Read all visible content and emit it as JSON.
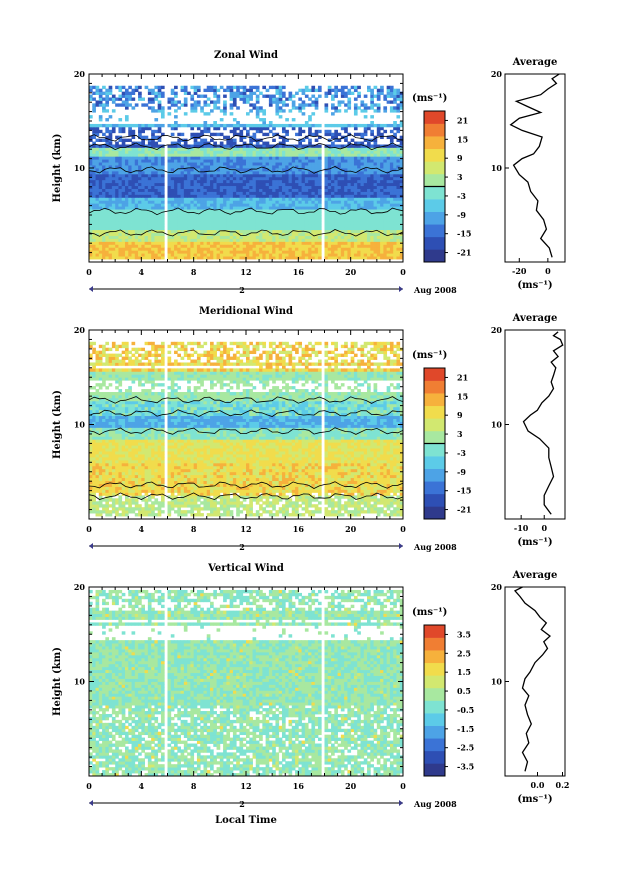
{
  "figure": {
    "x_axis_label": "Local Time",
    "date_label": "Aug 2008",
    "day_label": "2",
    "colorbar_unit": "(ms⁻¹)",
    "avg_unit": "(ms⁻¹)"
  },
  "chart_data": [
    {
      "type": "heatmap",
      "title": "Zonal Wind",
      "ylabel": "Height (km)",
      "x_ticks": [
        "0",
        "4",
        "8",
        "12",
        "16",
        "20",
        "0"
      ],
      "xlim": [
        0,
        24
      ],
      "y_ticks": [
        "10",
        "20"
      ],
      "ylim": [
        0,
        20
      ],
      "colorbar": {
        "ticks": [
          "21",
          "15",
          "9",
          "3",
          "-3",
          "-9",
          "-15",
          "-21"
        ],
        "range": [
          -24,
          24
        ],
        "zero_line": true
      },
      "profile": {
        "title": "Average",
        "x_ticks": [
          "-20",
          "0"
        ],
        "xlim": [
          -30,
          12
        ],
        "y_ticks": [
          "10",
          "20"
        ],
        "points": [
          [
            3,
            0.5
          ],
          [
            1,
            1.5
          ],
          [
            -5,
            2.5
          ],
          [
            -1,
            3.5
          ],
          [
            -3,
            4.5
          ],
          [
            -8,
            5.5
          ],
          [
            -7,
            6.5
          ],
          [
            -12,
            7.5
          ],
          [
            -14,
            8.5
          ],
          [
            -20,
            9.3
          ],
          [
            -24,
            10.3
          ],
          [
            -18,
            11
          ],
          [
            -10,
            11.5
          ],
          [
            -6,
            12.3
          ],
          [
            -4,
            13.3
          ],
          [
            -18,
            14
          ],
          [
            -26,
            14.6
          ],
          [
            -20,
            15.3
          ],
          [
            -5,
            15.9
          ],
          [
            -15,
            16.6
          ],
          [
            -22,
            17.1
          ],
          [
            -5,
            17.8
          ],
          [
            0,
            18.4
          ],
          [
            6,
            19
          ],
          [
            3,
            19.5
          ],
          [
            8,
            20
          ]
        ]
      }
    },
    {
      "type": "heatmap",
      "title": "Meridional Wind",
      "ylabel": "Height (km)",
      "x_ticks": [
        "0",
        "4",
        "8",
        "12",
        "16",
        "20",
        "0"
      ],
      "xlim": [
        0,
        24
      ],
      "y_ticks": [
        "10",
        "20"
      ],
      "ylim": [
        0,
        20
      ],
      "colorbar": {
        "ticks": [
          "21",
          "15",
          "9",
          "3",
          "-3",
          "-9",
          "-15",
          "-21"
        ],
        "range": [
          -24,
          24
        ],
        "zero_line": true
      },
      "profile": {
        "title": "Average",
        "x_ticks": [
          "-10",
          "0"
        ],
        "xlim": [
          -17,
          9
        ],
        "y_ticks": [
          "10",
          "20"
        ],
        "points": [
          [
            3,
            0.5
          ],
          [
            0,
            1.5
          ],
          [
            0,
            2.5
          ],
          [
            2,
            3.5
          ],
          [
            4,
            4.5
          ],
          [
            3,
            5.5
          ],
          [
            2,
            6.5
          ],
          [
            2,
            7.5
          ],
          [
            -2,
            8.5
          ],
          [
            -7,
            9.3
          ],
          [
            -9,
            10.3
          ],
          [
            -6,
            11
          ],
          [
            -3,
            11.5
          ],
          [
            -1,
            12.3
          ],
          [
            2,
            13
          ],
          [
            4,
            13.8
          ],
          [
            3,
            14.5
          ],
          [
            4,
            15.2
          ],
          [
            5,
            16
          ],
          [
            3,
            16.6
          ],
          [
            6,
            17.2
          ],
          [
            4,
            17.8
          ],
          [
            8,
            18.4
          ],
          [
            7,
            19
          ],
          [
            4,
            19.4
          ],
          [
            6,
            19.8
          ]
        ]
      }
    },
    {
      "type": "heatmap",
      "title": "Vertical Wind",
      "ylabel": "Height (km)",
      "x_ticks": [
        "0",
        "4",
        "8",
        "12",
        "16",
        "20",
        "0"
      ],
      "xlim": [
        0,
        24
      ],
      "y_ticks": [
        "10",
        "20"
      ],
      "ylim": [
        0,
        20
      ],
      "colorbar": {
        "ticks": [
          "3.5",
          "2.5",
          "1.5",
          "0.5",
          "-0.5",
          "-1.5",
          "-2.5",
          "-3.5"
        ],
        "range": [
          -4,
          4
        ],
        "zero_line": false
      },
      "profile": {
        "title": "Average",
        "x_ticks": [
          "0.0",
          "0.2"
        ],
        "x_extra_tick": "",
        "xlim": [
          -0.26,
          0.22
        ],
        "y_ticks": [
          "10",
          "20"
        ],
        "points": [
          [
            -0.1,
            0.5
          ],
          [
            -0.08,
            1.5
          ],
          [
            -0.12,
            2.5
          ],
          [
            -0.07,
            3.5
          ],
          [
            -0.09,
            4.5
          ],
          [
            -0.05,
            5.5
          ],
          [
            -0.08,
            6.5
          ],
          [
            -0.1,
            7.5
          ],
          [
            -0.07,
            8.5
          ],
          [
            -0.12,
            9.3
          ],
          [
            -0.1,
            10.3
          ],
          [
            -0.06,
            11
          ],
          [
            -0.02,
            12
          ],
          [
            0.04,
            12.8
          ],
          [
            0.08,
            13.5
          ],
          [
            0.05,
            14.2
          ],
          [
            0.1,
            14.8
          ],
          [
            0.03,
            15.5
          ],
          [
            0.07,
            16.2
          ],
          [
            0.02,
            16.8
          ],
          [
            -0.02,
            17.5
          ],
          [
            -0.1,
            18.3
          ],
          [
            -0.14,
            19
          ],
          [
            -0.18,
            19.6
          ],
          [
            -0.12,
            20
          ]
        ]
      }
    }
  ]
}
